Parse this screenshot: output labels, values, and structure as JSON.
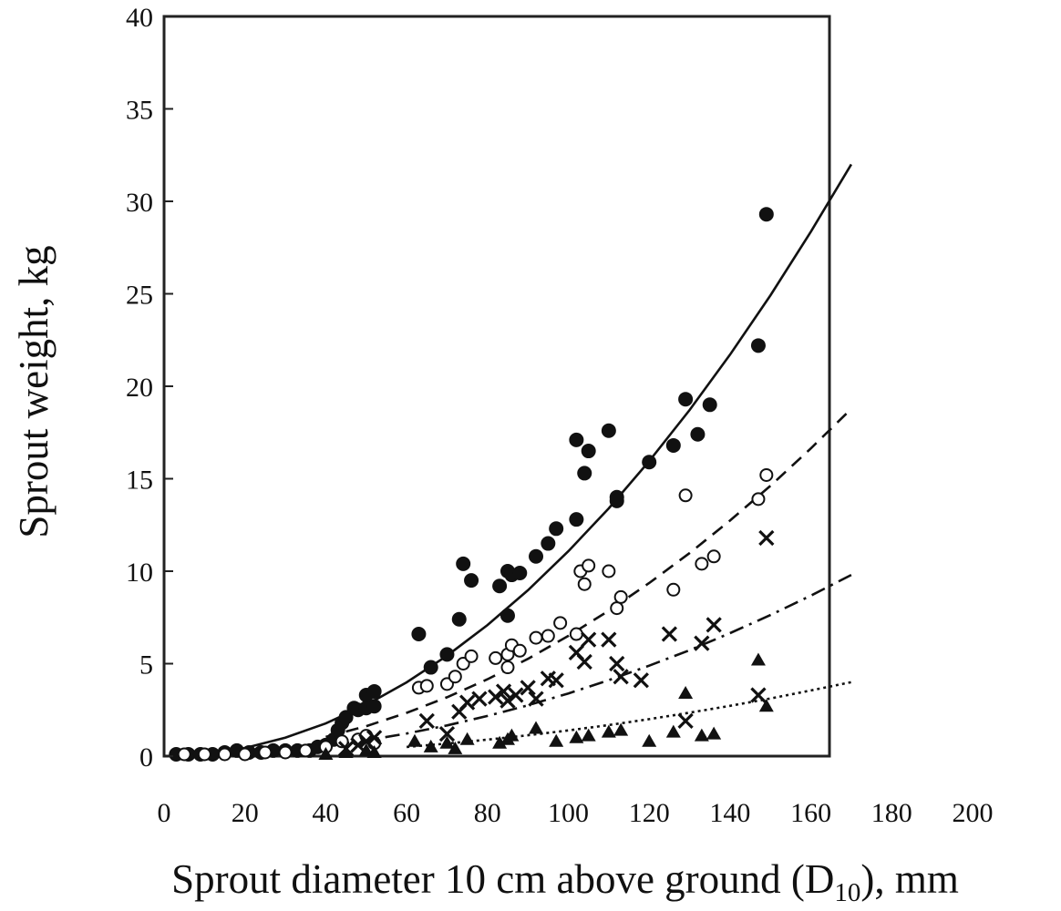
{
  "chart_data": {
    "type": "scatter",
    "title": "",
    "xlabel": "Sprout diameter 10 cm above ground (D",
    "xlabel_sub": "10",
    "xlabel_tail": "), mm",
    "ylabel": "Sprout weight, kg",
    "xlim": [
      0,
      200
    ],
    "ylim": [
      0,
      40
    ],
    "xticks": [
      0,
      20,
      40,
      60,
      80,
      100,
      120,
      140,
      160,
      180,
      200
    ],
    "yticks": [
      0,
      5,
      10,
      15,
      20,
      25,
      30,
      35,
      40
    ],
    "grid": false,
    "legend": "none",
    "series": [
      {
        "marker": "filled-circle",
        "line": "solid",
        "color": "#111111",
        "points": [
          [
            3,
            0.1
          ],
          [
            6,
            0.1
          ],
          [
            9,
            0.1
          ],
          [
            12,
            0.1
          ],
          [
            15,
            0.2
          ],
          [
            18,
            0.3
          ],
          [
            21,
            0.2
          ],
          [
            24,
            0.2
          ],
          [
            27,
            0.3
          ],
          [
            30,
            0.3
          ],
          [
            33,
            0.3
          ],
          [
            36,
            0.3
          ],
          [
            38,
            0.5
          ],
          [
            40,
            0.6
          ],
          [
            42,
            0.9
          ],
          [
            43,
            1.4
          ],
          [
            44,
            1.8
          ],
          [
            45,
            2.1
          ],
          [
            47,
            2.6
          ],
          [
            48,
            2.5
          ],
          [
            50,
            2.6
          ],
          [
            50,
            3.3
          ],
          [
            52,
            3.5
          ],
          [
            52,
            2.7
          ],
          [
            63,
            6.6
          ],
          [
            66,
            4.8
          ],
          [
            70,
            5.5
          ],
          [
            73,
            7.4
          ],
          [
            74,
            10.4
          ],
          [
            76,
            9.5
          ],
          [
            83,
            9.2
          ],
          [
            85,
            7.6
          ],
          [
            85,
            10.0
          ],
          [
            86,
            9.8
          ],
          [
            88,
            9.9
          ],
          [
            92,
            10.8
          ],
          [
            95,
            11.5
          ],
          [
            97,
            12.3
          ],
          [
            102,
            12.8
          ],
          [
            102,
            17.1
          ],
          [
            104,
            15.3
          ],
          [
            105,
            16.5
          ],
          [
            110,
            17.6
          ],
          [
            112,
            14.0
          ],
          [
            112,
            13.8
          ],
          [
            120,
            15.9
          ],
          [
            126,
            16.8
          ],
          [
            129,
            19.3
          ],
          [
            132,
            17.4
          ],
          [
            135,
            19.0
          ],
          [
            147,
            22.2
          ],
          [
            149,
            29.3
          ]
        ],
        "fit": [
          [
            0,
            0
          ],
          [
            10,
            0.11
          ],
          [
            20,
            0.44
          ],
          [
            30,
            1.0
          ],
          [
            40,
            1.77
          ],
          [
            50,
            2.77
          ],
          [
            60,
            3.99
          ],
          [
            70,
            5.43
          ],
          [
            80,
            7.09
          ],
          [
            90,
            8.97
          ],
          [
            100,
            11.08
          ],
          [
            110,
            13.4
          ],
          [
            120,
            15.95
          ],
          [
            130,
            18.72
          ],
          [
            140,
            21.71
          ],
          [
            150,
            24.92
          ],
          [
            160,
            28.36
          ],
          [
            170,
            32.0
          ]
        ]
      },
      {
        "marker": "open-circle",
        "line": "dashed",
        "color": "#111111",
        "points": [
          [
            5,
            0.1
          ],
          [
            10,
            0.1
          ],
          [
            15,
            0.1
          ],
          [
            20,
            0.1
          ],
          [
            25,
            0.2
          ],
          [
            30,
            0.2
          ],
          [
            35,
            0.3
          ],
          [
            40,
            0.5
          ],
          [
            44,
            0.8
          ],
          [
            48,
            0.9
          ],
          [
            50,
            1.1
          ],
          [
            52,
            0.7
          ],
          [
            63,
            3.7
          ],
          [
            65,
            3.8
          ],
          [
            70,
            3.9
          ],
          [
            72,
            4.3
          ],
          [
            74,
            5.0
          ],
          [
            76,
            5.4
          ],
          [
            82,
            5.3
          ],
          [
            85,
            4.8
          ],
          [
            85,
            5.5
          ],
          [
            86,
            6.0
          ],
          [
            88,
            5.7
          ],
          [
            92,
            6.4
          ],
          [
            95,
            6.5
          ],
          [
            98,
            7.2
          ],
          [
            102,
            6.6
          ],
          [
            103,
            10.0
          ],
          [
            104,
            9.3
          ],
          [
            105,
            10.3
          ],
          [
            110,
            10.0
          ],
          [
            112,
            8.0
          ],
          [
            113,
            8.6
          ],
          [
            126,
            9.0
          ],
          [
            129,
            14.1
          ],
          [
            133,
            10.4
          ],
          [
            136,
            10.8
          ],
          [
            147,
            13.9
          ],
          [
            149,
            15.2
          ]
        ],
        "fit": [
          [
            40,
            1.04
          ],
          [
            50,
            1.62
          ],
          [
            60,
            2.34
          ],
          [
            70,
            3.18
          ],
          [
            80,
            4.16
          ],
          [
            90,
            5.26
          ],
          [
            100,
            6.5
          ],
          [
            110,
            7.86
          ],
          [
            120,
            9.36
          ],
          [
            130,
            10.98
          ],
          [
            140,
            12.74
          ],
          [
            150,
            14.62
          ],
          [
            160,
            16.64
          ],
          [
            170,
            18.78
          ]
        ]
      },
      {
        "marker": "cross",
        "line": "dash-dot",
        "color": "#111111",
        "points": [
          [
            45,
            0.4
          ],
          [
            48,
            0.6
          ],
          [
            50,
            0.8
          ],
          [
            52,
            1.0
          ],
          [
            65,
            1.9
          ],
          [
            70,
            1.2
          ],
          [
            73,
            2.4
          ],
          [
            75,
            2.9
          ],
          [
            78,
            3.1
          ],
          [
            82,
            3.2
          ],
          [
            84,
            3.5
          ],
          [
            85,
            3.0
          ],
          [
            87,
            3.3
          ],
          [
            90,
            3.7
          ],
          [
            92,
            3.1
          ],
          [
            95,
            4.2
          ],
          [
            97,
            4.1
          ],
          [
            102,
            5.6
          ],
          [
            104,
            5.1
          ],
          [
            105,
            6.3
          ],
          [
            110,
            6.3
          ],
          [
            112,
            5.0
          ],
          [
            113,
            4.3
          ],
          [
            118,
            4.1
          ],
          [
            125,
            6.6
          ],
          [
            129,
            1.9
          ],
          [
            133,
            6.1
          ],
          [
            136,
            7.1
          ],
          [
            147,
            3.3
          ],
          [
            149,
            11.8
          ]
        ],
        "fit": [
          [
            40,
            0.54
          ],
          [
            50,
            0.85
          ],
          [
            60,
            1.22
          ],
          [
            70,
            1.66
          ],
          [
            80,
            2.17
          ],
          [
            90,
            2.75
          ],
          [
            100,
            3.39
          ],
          [
            110,
            4.11
          ],
          [
            120,
            4.89
          ],
          [
            130,
            5.73
          ],
          [
            140,
            6.65
          ],
          [
            150,
            7.63
          ],
          [
            160,
            8.68
          ],
          [
            170,
            9.8
          ]
        ]
      },
      {
        "marker": "filled-triangle",
        "line": "dotted",
        "color": "#111111",
        "points": [
          [
            40,
            0.1
          ],
          [
            45,
            0.2
          ],
          [
            50,
            0.3
          ],
          [
            52,
            0.2
          ],
          [
            62,
            0.8
          ],
          [
            66,
            0.5
          ],
          [
            70,
            0.7
          ],
          [
            72,
            0.4
          ],
          [
            75,
            0.9
          ],
          [
            83,
            0.7
          ],
          [
            85,
            0.9
          ],
          [
            86,
            1.1
          ],
          [
            92,
            1.5
          ],
          [
            97,
            0.8
          ],
          [
            102,
            1.0
          ],
          [
            105,
            1.1
          ],
          [
            110,
            1.3
          ],
          [
            113,
            1.4
          ],
          [
            120,
            0.8
          ],
          [
            126,
            1.3
          ],
          [
            129,
            3.4
          ],
          [
            133,
            1.1
          ],
          [
            136,
            1.2
          ],
          [
            147,
            5.2
          ],
          [
            149,
            2.7
          ]
        ],
        "fit": [
          [
            60,
            0.5
          ],
          [
            70,
            0.68
          ],
          [
            80,
            0.89
          ],
          [
            90,
            1.13
          ],
          [
            100,
            1.39
          ],
          [
            110,
            1.68
          ],
          [
            120,
            2.0
          ],
          [
            130,
            2.35
          ],
          [
            140,
            2.72
          ],
          [
            150,
            3.12
          ],
          [
            160,
            3.55
          ],
          [
            170,
            4.0
          ]
        ]
      }
    ]
  }
}
